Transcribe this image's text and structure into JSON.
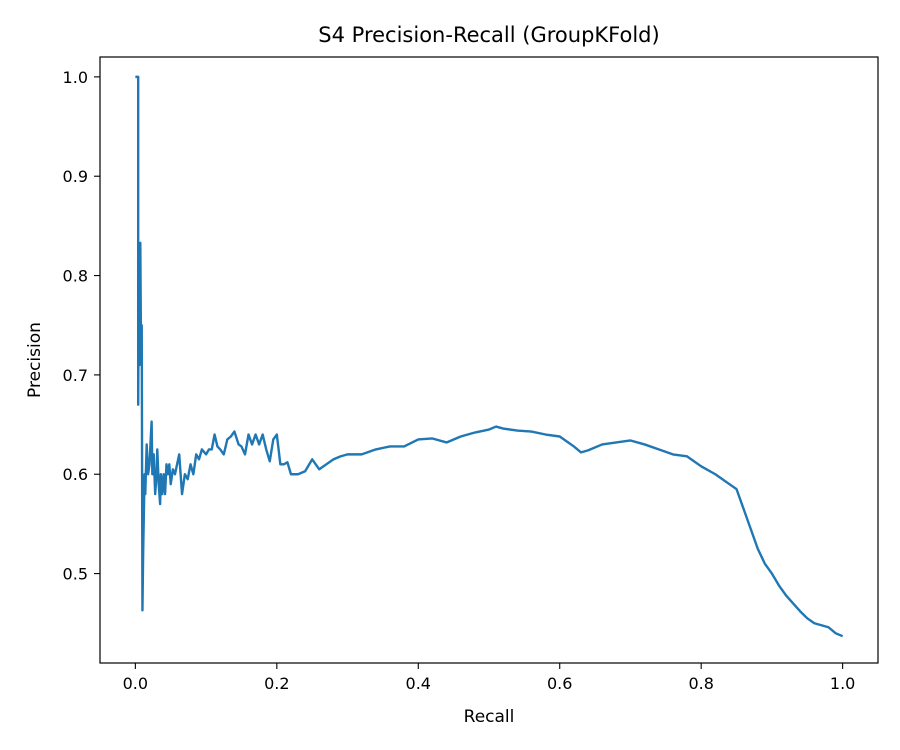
{
  "chart_data": {
    "type": "line",
    "title": "S4 Precision-Recall (GroupKFold)",
    "xlabel": "Recall",
    "ylabel": "Precision",
    "xlim": [
      -0.05,
      1.05
    ],
    "ylim": [
      0.41,
      1.02
    ],
    "xticks": [
      0.0,
      0.2,
      0.4,
      0.6,
      0.8,
      1.0
    ],
    "xtick_labels": [
      "0.0",
      "0.2",
      "0.4",
      "0.6",
      "0.8",
      "1.0"
    ],
    "yticks": [
      0.5,
      0.6,
      0.7,
      0.8,
      0.9,
      1.0
    ],
    "ytick_labels": [
      "0.5",
      "0.6",
      "0.7",
      "0.8",
      "0.9",
      "1.0"
    ],
    "grid": false,
    "legend": "none",
    "line_color": "#1f77b4",
    "series": [
      {
        "x": [
          0.0,
          0.004,
          0.004,
          0.005,
          0.006,
          0.007,
          0.008,
          0.009,
          0.01,
          0.011,
          0.012,
          0.013,
          0.014,
          0.016,
          0.018,
          0.02,
          0.022,
          0.023,
          0.024,
          0.026,
          0.028,
          0.03,
          0.031,
          0.033,
          0.035,
          0.036,
          0.038,
          0.04,
          0.042,
          0.044,
          0.046,
          0.048,
          0.05,
          0.053,
          0.056,
          0.059,
          0.062,
          0.066,
          0.07,
          0.074,
          0.078,
          0.082,
          0.086,
          0.09,
          0.094,
          0.1,
          0.104,
          0.108,
          0.112,
          0.116,
          0.12,
          0.125,
          0.13,
          0.135,
          0.14,
          0.146,
          0.15,
          0.155,
          0.16,
          0.165,
          0.17,
          0.175,
          0.18,
          0.185,
          0.19,
          0.195,
          0.2,
          0.205,
          0.21,
          0.215,
          0.22,
          0.23,
          0.24,
          0.25,
          0.26,
          0.27,
          0.28,
          0.29,
          0.3,
          0.32,
          0.34,
          0.36,
          0.38,
          0.4,
          0.42,
          0.44,
          0.46,
          0.48,
          0.5,
          0.51,
          0.52,
          0.54,
          0.56,
          0.58,
          0.6,
          0.62,
          0.63,
          0.64,
          0.66,
          0.68,
          0.7,
          0.72,
          0.74,
          0.76,
          0.78,
          0.8,
          0.82,
          0.84,
          0.85,
          0.86,
          0.87,
          0.88,
          0.89,
          0.9,
          0.91,
          0.92,
          0.93,
          0.94,
          0.95,
          0.96,
          0.97,
          0.98,
          0.99,
          1.0
        ],
        "y": [
          1.0,
          1.0,
          0.67,
          0.82,
          0.71,
          0.833,
          0.72,
          0.75,
          0.463,
          0.52,
          0.56,
          0.6,
          0.58,
          0.63,
          0.6,
          0.61,
          0.64,
          0.653,
          0.6,
          0.62,
          0.58,
          0.6,
          0.625,
          0.59,
          0.57,
          0.6,
          0.58,
          0.6,
          0.58,
          0.61,
          0.6,
          0.61,
          0.59,
          0.605,
          0.6,
          0.61,
          0.62,
          0.58,
          0.6,
          0.595,
          0.61,
          0.6,
          0.62,
          0.615,
          0.625,
          0.62,
          0.625,
          0.625,
          0.64,
          0.628,
          0.625,
          0.62,
          0.635,
          0.638,
          0.643,
          0.63,
          0.628,
          0.62,
          0.64,
          0.63,
          0.64,
          0.63,
          0.64,
          0.625,
          0.613,
          0.635,
          0.64,
          0.61,
          0.61,
          0.612,
          0.6,
          0.6,
          0.603,
          0.615,
          0.605,
          0.61,
          0.615,
          0.618,
          0.62,
          0.62,
          0.625,
          0.628,
          0.628,
          0.635,
          0.636,
          0.632,
          0.638,
          0.642,
          0.645,
          0.648,
          0.646,
          0.644,
          0.643,
          0.64,
          0.638,
          0.628,
          0.622,
          0.624,
          0.63,
          0.632,
          0.634,
          0.63,
          0.625,
          0.62,
          0.618,
          0.608,
          0.6,
          0.59,
          0.585,
          0.565,
          0.545,
          0.525,
          0.51,
          0.5,
          0.488,
          0.478,
          0.47,
          0.462,
          0.455,
          0.45,
          0.448,
          0.446,
          0.44,
          0.437
        ]
      }
    ]
  }
}
